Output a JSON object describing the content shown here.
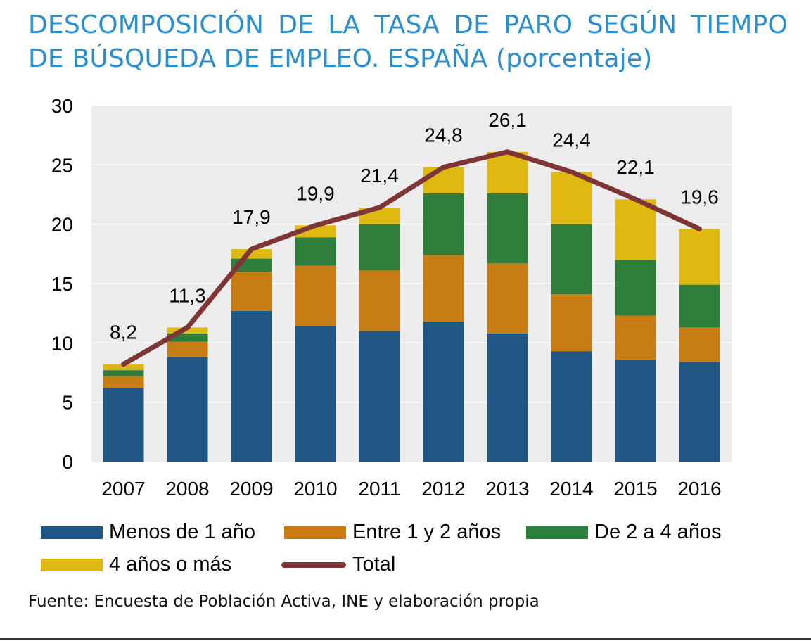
{
  "title": {
    "line1": "DESCOMPOSICIÓN DE LA TASA DE PARO SEGÚN TIEMPO",
    "line2": "DE BÚSQUEDA DE EMPLEO. ESPAÑA (porcentaje)"
  },
  "source": "Fuente: Encuesta de Población Activa, INE y elaboración propia",
  "colors": {
    "menos1": "#1f5684",
    "entre1y2": "#c77d14",
    "de2a4": "#2e7d3a",
    "mas4": "#e0b812",
    "total": "#7f3535",
    "plot_bg": "#ececec"
  },
  "chart_data": {
    "type": "bar",
    "stacked": true,
    "categories": [
      "2007",
      "2008",
      "2009",
      "2010",
      "2011",
      "2012",
      "2013",
      "2014",
      "2015",
      "2016"
    ],
    "ylim": [
      0,
      30
    ],
    "yticks": [
      "0",
      "5",
      "10",
      "15",
      "20",
      "25",
      "30"
    ],
    "grid": true,
    "legend_position": "bottom",
    "series": [
      {
        "name": "Menos de 1 año",
        "color_key": "menos1",
        "values": [
          6.2,
          8.8,
          12.7,
          11.4,
          11.0,
          11.8,
          10.8,
          9.3,
          8.6,
          8.4
        ]
      },
      {
        "name": "Entre 1 y 2 años",
        "color_key": "entre1y2",
        "values": [
          1.0,
          1.3,
          3.3,
          5.1,
          5.1,
          5.6,
          5.9,
          4.8,
          3.7,
          2.9
        ]
      },
      {
        "name": "De 2 a 4 años",
        "color_key": "de2a4",
        "values": [
          0.5,
          0.7,
          1.1,
          2.4,
          3.9,
          5.2,
          5.9,
          5.9,
          4.7,
          3.6
        ]
      },
      {
        "name": "4 años o más",
        "color_key": "mas4",
        "values": [
          0.5,
          0.5,
          0.8,
          1.0,
          1.4,
          2.2,
          3.5,
          4.4,
          5.1,
          4.7
        ]
      }
    ],
    "line": {
      "name": "Total",
      "color_key": "total",
      "values": [
        8.2,
        11.3,
        17.9,
        19.9,
        21.4,
        24.8,
        26.1,
        24.4,
        22.1,
        19.6
      ]
    },
    "data_labels": [
      "8,2",
      "11,3",
      "17,9",
      "19,9",
      "21,4",
      "24,8",
      "26,1",
      "24,4",
      "22,1",
      "19,6"
    ]
  }
}
